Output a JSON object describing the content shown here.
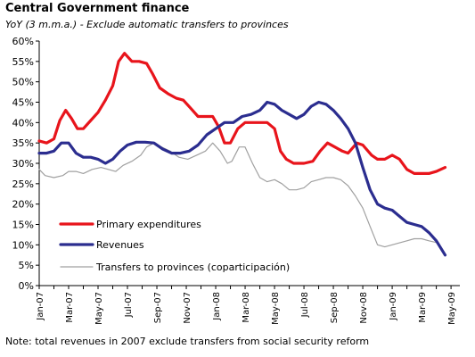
{
  "chart_data": {
    "type": "line",
    "title": "Central Government finance",
    "subtitle": "YoY (3 m.m.a.) - Exclude automatic transfers to provinces",
    "note": "Note: total revenues in 2007 exclude transfers from social security reform",
    "ylim": [
      0,
      60
    ],
    "y_ticks": [
      "0%",
      "5%",
      "10%",
      "15%",
      "20%",
      "25%",
      "30%",
      "35%",
      "40%",
      "45%",
      "50%",
      "55%",
      "60%"
    ],
    "x_ticks": [
      "Jan-07",
      "Mar-07",
      "May-07",
      "Jul-07",
      "Sep-07",
      "Nov-07",
      "Jan-08",
      "Mar-08",
      "May-08",
      "Jul-08",
      "Sep-08",
      "Nov-08",
      "Jan-09",
      "Mar-09",
      "May-09"
    ],
    "x_range_months": [
      0,
      28.6
    ],
    "grid": false,
    "legend_position": "lower-left",
    "colors": {
      "primary": "#e8141b",
      "revenues": "#2b2d8f",
      "transfers": "#a0a0a0"
    },
    "series": [
      {
        "name": "Primary expenditures",
        "key": "primary",
        "points": [
          [
            0,
            35.5
          ],
          [
            0.5,
            35
          ],
          [
            1,
            36
          ],
          [
            1.4,
            40.5
          ],
          [
            1.8,
            43
          ],
          [
            2.2,
            41
          ],
          [
            2.6,
            38.5
          ],
          [
            3,
            38.5
          ],
          [
            3.5,
            40.5
          ],
          [
            4,
            42.5
          ],
          [
            4.5,
            45.5
          ],
          [
            5,
            49
          ],
          [
            5.4,
            55
          ],
          [
            5.8,
            57
          ],
          [
            6.3,
            55
          ],
          [
            6.8,
            55
          ],
          [
            7.3,
            54.5
          ],
          [
            7.7,
            52
          ],
          [
            8.2,
            48.5
          ],
          [
            8.8,
            47
          ],
          [
            9.3,
            46
          ],
          [
            9.8,
            45.5
          ],
          [
            10.3,
            43.5
          ],
          [
            10.8,
            41.5
          ],
          [
            11.3,
            41.5
          ],
          [
            11.8,
            41.5
          ],
          [
            12.2,
            39
          ],
          [
            12.6,
            35
          ],
          [
            13,
            35
          ],
          [
            13.5,
            38.5
          ],
          [
            14,
            40
          ],
          [
            14.5,
            40
          ],
          [
            15,
            40
          ],
          [
            15.5,
            40
          ],
          [
            16,
            38.5
          ],
          [
            16.4,
            33
          ],
          [
            16.8,
            31
          ],
          [
            17.3,
            30
          ],
          [
            18,
            30
          ],
          [
            18.6,
            30.5
          ],
          [
            19.1,
            33
          ],
          [
            19.6,
            35
          ],
          [
            20.1,
            34
          ],
          [
            20.6,
            33
          ],
          [
            21,
            32.5
          ],
          [
            21.6,
            35
          ],
          [
            22,
            34.5
          ],
          [
            22.6,
            32
          ],
          [
            23,
            31
          ],
          [
            23.5,
            31
          ],
          [
            24,
            32
          ],
          [
            24.5,
            31
          ],
          [
            25,
            28.5
          ],
          [
            25.5,
            27.5
          ],
          [
            26,
            27.5
          ],
          [
            26.5,
            27.5
          ],
          [
            27,
            28
          ],
          [
            27.6,
            29
          ]
        ]
      },
      {
        "name": "Revenues",
        "key": "revenues",
        "points": [
          [
            0,
            32.5
          ],
          [
            0.5,
            32.5
          ],
          [
            1,
            33
          ],
          [
            1.5,
            35
          ],
          [
            2,
            35
          ],
          [
            2.5,
            32.5
          ],
          [
            3,
            31.5
          ],
          [
            3.5,
            31.5
          ],
          [
            4,
            31
          ],
          [
            4.5,
            30
          ],
          [
            5,
            31
          ],
          [
            5.5,
            33
          ],
          [
            6,
            34.5
          ],
          [
            6.6,
            35.2
          ],
          [
            7.2,
            35.2
          ],
          [
            7.8,
            35
          ],
          [
            8.4,
            33.5
          ],
          [
            9,
            32.5
          ],
          [
            9.6,
            32.5
          ],
          [
            10.2,
            33
          ],
          [
            10.8,
            34.5
          ],
          [
            11.4,
            37
          ],
          [
            12,
            38.5
          ],
          [
            12.6,
            40
          ],
          [
            13.2,
            40
          ],
          [
            13.8,
            41.5
          ],
          [
            14.4,
            42
          ],
          [
            15,
            43
          ],
          [
            15.5,
            45
          ],
          [
            16,
            44.5
          ],
          [
            16.5,
            43
          ],
          [
            17,
            42
          ],
          [
            17.5,
            41
          ],
          [
            18,
            42
          ],
          [
            18.5,
            44
          ],
          [
            19,
            45
          ],
          [
            19.5,
            44.5
          ],
          [
            20,
            43
          ],
          [
            20.5,
            41
          ],
          [
            21,
            38.5
          ],
          [
            21.5,
            35
          ],
          [
            22,
            29
          ],
          [
            22.5,
            23.5
          ],
          [
            23,
            20
          ],
          [
            23.5,
            19
          ],
          [
            24,
            18.5
          ],
          [
            24.5,
            17
          ],
          [
            25,
            15.5
          ],
          [
            25.5,
            15
          ],
          [
            26,
            14.5
          ],
          [
            26.5,
            13
          ],
          [
            27,
            11
          ],
          [
            27.6,
            7.5
          ]
        ]
      },
      {
        "name": "Transfers to provinces (coparticipación)",
        "key": "transfers",
        "points": [
          [
            0,
            28.5
          ],
          [
            0.4,
            27
          ],
          [
            1,
            26.5
          ],
          [
            1.6,
            27
          ],
          [
            2,
            28
          ],
          [
            2.5,
            28
          ],
          [
            3,
            27.5
          ],
          [
            3.6,
            28.5
          ],
          [
            4.2,
            29
          ],
          [
            4.7,
            28.5
          ],
          [
            5.2,
            28
          ],
          [
            5.7,
            29.5
          ],
          [
            6.3,
            30.5
          ],
          [
            6.9,
            32
          ],
          [
            7.3,
            34
          ],
          [
            7.8,
            35
          ],
          [
            8.3,
            34
          ],
          [
            8.9,
            33
          ],
          [
            9.5,
            31.5
          ],
          [
            10.1,
            31
          ],
          [
            10.7,
            32
          ],
          [
            11.3,
            33
          ],
          [
            11.8,
            35
          ],
          [
            12.3,
            33
          ],
          [
            12.8,
            30
          ],
          [
            13.1,
            30.5
          ],
          [
            13.6,
            34
          ],
          [
            14,
            34
          ],
          [
            14.5,
            30
          ],
          [
            15,
            26.5
          ],
          [
            15.5,
            25.5
          ],
          [
            16,
            26
          ],
          [
            16.5,
            25
          ],
          [
            17,
            23.5
          ],
          [
            17.5,
            23.5
          ],
          [
            18,
            24
          ],
          [
            18.5,
            25.5
          ],
          [
            19,
            26
          ],
          [
            19.5,
            26.5
          ],
          [
            20,
            26.5
          ],
          [
            20.5,
            26
          ],
          [
            21,
            24.5
          ],
          [
            21.5,
            22
          ],
          [
            22,
            19
          ],
          [
            22.5,
            14.5
          ],
          [
            23,
            10
          ],
          [
            23.5,
            9.5
          ],
          [
            24,
            10
          ],
          [
            24.5,
            10.5
          ],
          [
            25,
            11
          ],
          [
            25.5,
            11.5
          ],
          [
            26,
            11.5
          ],
          [
            26.5,
            11
          ],
          [
            27.1,
            10.5
          ]
        ]
      }
    ]
  }
}
